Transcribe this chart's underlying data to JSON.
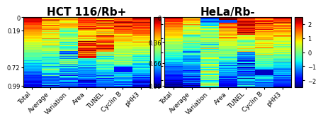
{
  "title_left": "HCT 116/Rb+",
  "title_right": "HeLa/Rb-",
  "columns": [
    "Total",
    "Average",
    "Variation",
    "Area",
    "TUNEL",
    "Cyclin B",
    "pHH3"
  ],
  "n_rows": 120,
  "n_cols": 7,
  "colormap": "jet",
  "vmin": -2.5,
  "vmax": 2.5,
  "colorbar_ticks": [
    -2,
    -1,
    0,
    1,
    2
  ],
  "yticks_left": [
    0,
    0.19,
    0.72,
    0.99
  ],
  "yticks_right": [
    0,
    0.36,
    0.66,
    0.99
  ],
  "title_fontsize": 11,
  "tick_fontsize": 6,
  "label_fontsize": 6.5,
  "background": "#e0e0e0"
}
